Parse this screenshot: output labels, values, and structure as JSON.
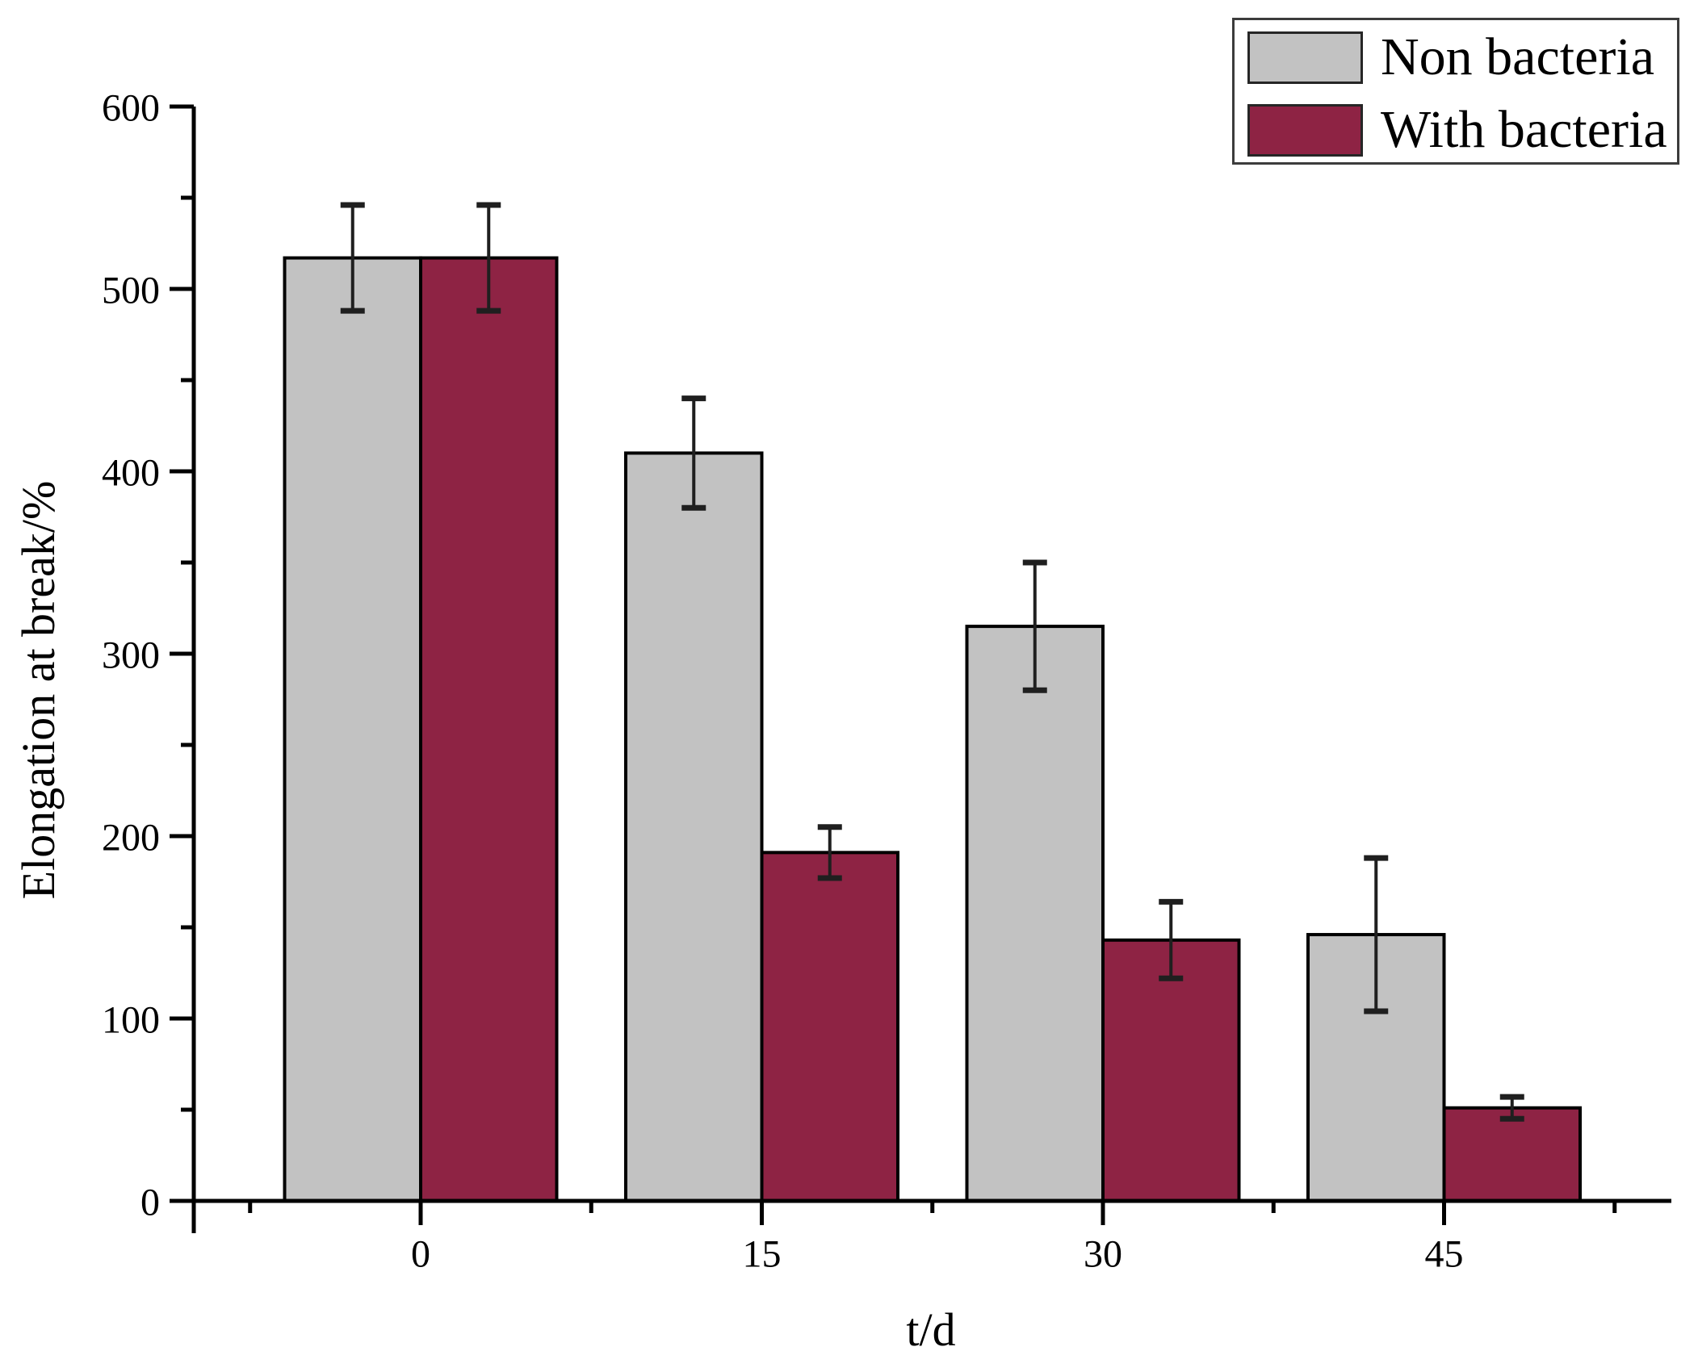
{
  "legend": {
    "items": [
      {
        "label": "Non bacteria",
        "color": "#c2c2c2"
      },
      {
        "label": "With bacteria",
        "color": "#8e2344"
      }
    ]
  },
  "chart_data": {
    "type": "bar",
    "title": "",
    "xlabel": "t/d",
    "ylabel": "Elongation at break/%",
    "categories": [
      "0",
      "15",
      "30",
      "45"
    ],
    "series": [
      {
        "name": "Non bacteria",
        "color": "#c2c2c2",
        "values": [
          517,
          410,
          315,
          146
        ],
        "errors": [
          29,
          30,
          35,
          42
        ]
      },
      {
        "name": "With bacteria",
        "color": "#8e2344",
        "values": [
          517,
          191,
          143,
          51
        ],
        "errors": [
          29,
          14,
          21,
          6
        ]
      }
    ],
    "ylim": [
      0,
      600
    ],
    "y_major_step": 100,
    "y_minor_step": 50,
    "y_tick_labels": [
      "0",
      "100",
      "200",
      "300",
      "400",
      "500",
      "600"
    ],
    "grid": false,
    "legend_position": "top-right",
    "bar_outline_color": "#000000",
    "error_bar_color": "#1f1f1f",
    "axis_color": "#000000"
  }
}
